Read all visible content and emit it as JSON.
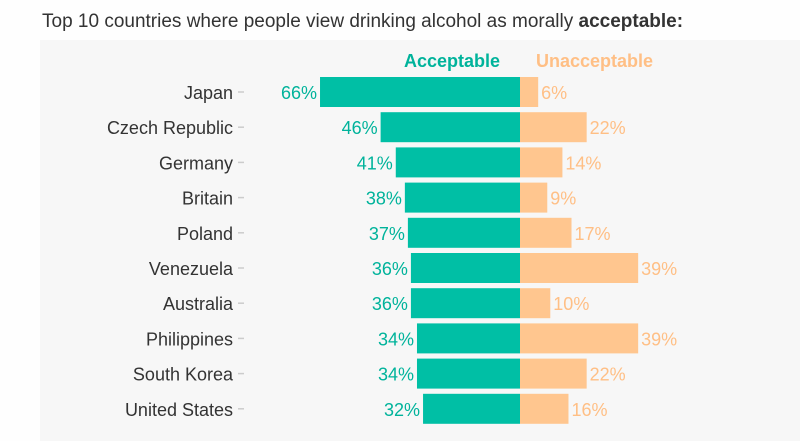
{
  "title": {
    "text": "Top 10 countries where people view drinking alcohol as morally ",
    "bold": "acceptable:"
  },
  "legend": {
    "acceptable": "Acceptable",
    "unacceptable": "Unacceptable"
  },
  "colors": {
    "acceptable": "#00bfa5",
    "unacceptable": "#ffc68f",
    "acceptable_text": "#00b39b",
    "unacceptable_text": "#ffbf85",
    "label_text": "#333333",
    "tick": "#cccccc"
  },
  "chart_data": {
    "type": "bar",
    "orientation": "horizontal-diverging",
    "categories": [
      "Japan",
      "Czech Republic",
      "Germany",
      "Britain",
      "Poland",
      "Venezuela",
      "Australia",
      "Philippines",
      "South Korea",
      "United States"
    ],
    "series": [
      {
        "name": "Acceptable",
        "values": [
          66,
          46,
          41,
          38,
          37,
          36,
          36,
          34,
          34,
          32
        ],
        "labels": [
          "66%",
          "46%",
          "41%",
          "38%",
          "37%",
          "36%",
          "36%",
          "34%",
          "34%",
          "32%"
        ]
      },
      {
        "name": "Unacceptable",
        "values": [
          6,
          22,
          14,
          9,
          17,
          39,
          10,
          39,
          22,
          16
        ],
        "labels": [
          "6%",
          "22%",
          "14%",
          "9%",
          "17%",
          "39%",
          "10%",
          "39%",
          "22%",
          "16%"
        ]
      }
    ],
    "title": "Top 10 countries where people view drinking alcohol as morally acceptable:",
    "grid": false,
    "legend_position": "top"
  }
}
